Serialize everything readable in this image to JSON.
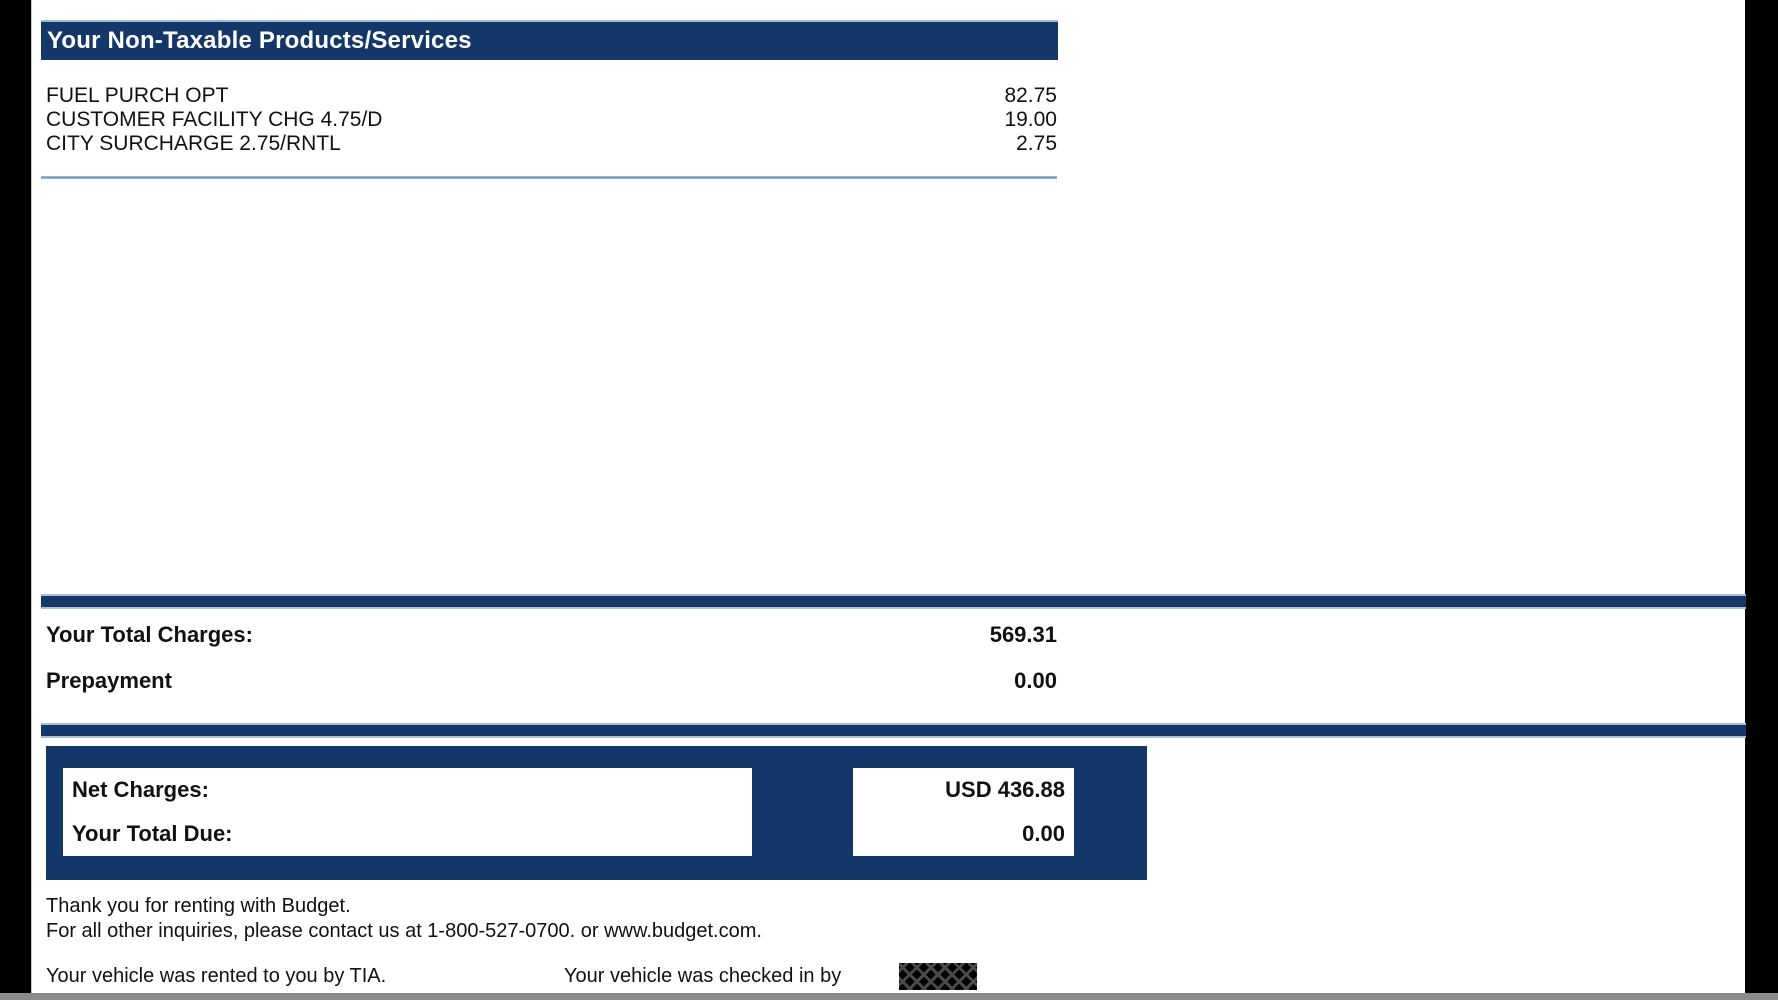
{
  "section_header": "Your Non-Taxable Products/Services",
  "line_items": [
    {
      "label": "FUEL PURCH OPT",
      "amount": "82.75"
    },
    {
      "label": "CUSTOMER FACILITY CHG 4.75/D",
      "amount": "19.00"
    },
    {
      "label": "CITY SURCHARGE 2.75/RNTL",
      "amount": "2.75"
    }
  ],
  "totals": [
    {
      "label": "Your Total Charges:",
      "amount": "569.31"
    },
    {
      "label": "Prepayment",
      "amount": "0.00"
    }
  ],
  "net_box": {
    "rows": [
      {
        "label": "Net Charges:",
        "amount": "USD 436.88"
      },
      {
        "label": "Your Total Due:",
        "amount": "0.00"
      }
    ]
  },
  "footer": {
    "thanks_line_1": "Thank you for renting with Budget.",
    "thanks_line_2": "For all other inquiries, please contact us at 1-800-527-0700. or www.budget.com.",
    "rented_by": "Your vehicle was rented to you by TIA.",
    "checked_in_by": "Your vehicle was checked in by",
    "checked_in_value_redacted": "XXXX"
  },
  "colors": {
    "navy": "#143769",
    "separator_blue": "#5d8cb6",
    "bar_edge": "#aebfd2",
    "bottom_strip_gray": "#8b8b8b",
    "background_black": "#000000"
  }
}
